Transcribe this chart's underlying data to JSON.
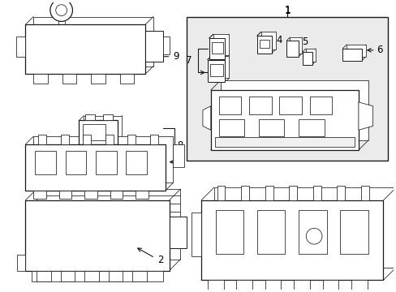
{
  "background_color": "#ffffff",
  "line_color": "#1a1a1a",
  "fig_width": 4.89,
  "fig_height": 3.6,
  "dpi": 100,
  "gray_fill": "#d8d8d8",
  "white": "#ffffff",
  "light_gray": "#ebebeb"
}
